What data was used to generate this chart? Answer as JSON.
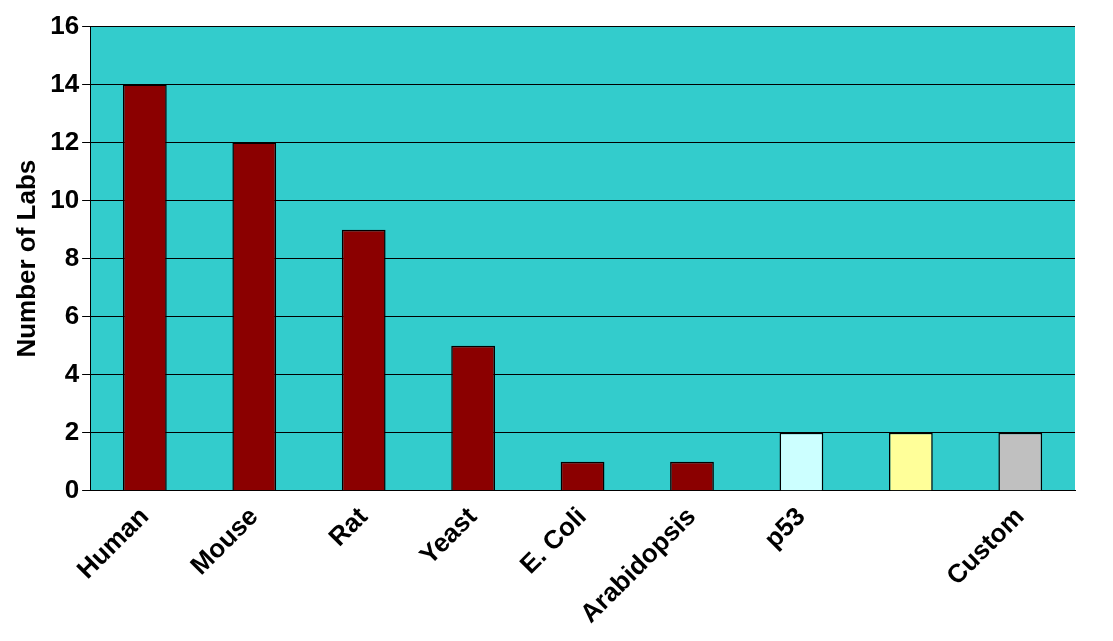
{
  "chart_data": {
    "type": "bar",
    "ylabel": "Number of Labs",
    "categories": [
      "Human",
      "Mouse",
      "Rat",
      "Yeast",
      "E. Coli",
      "Arabidopsis",
      "p53",
      null,
      "Custom"
    ],
    "values": [
      14,
      12,
      9,
      5,
      1,
      1,
      2,
      2,
      2
    ],
    "colors": [
      "#8b0000",
      "#8b0000",
      "#8b0000",
      "#8b0000",
      "#8b0000",
      "#8b0000",
      "#ccffff",
      "#ffff99",
      "#c0c0c0"
    ],
    "ylim": [
      0,
      16
    ],
    "yticks": [
      0,
      2,
      4,
      6,
      8,
      10,
      12,
      14,
      16
    ],
    "grid": "y",
    "legend": false
  }
}
